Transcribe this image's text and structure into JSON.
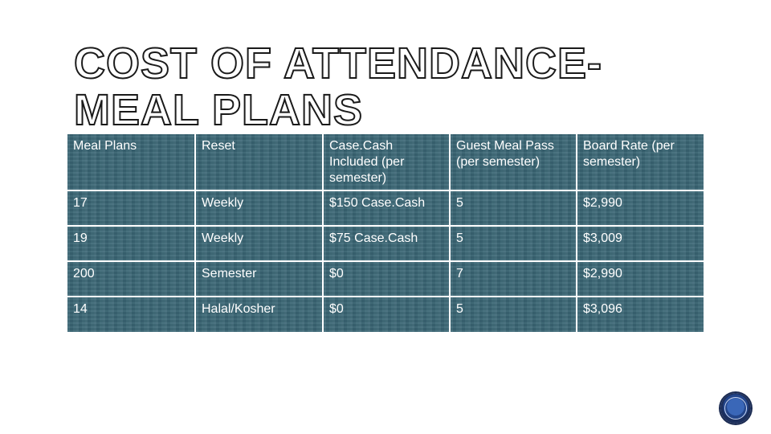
{
  "slide": {
    "title_line1": "COST OF ATTENDANCE-",
    "title_line2": "MEAL PLANS"
  },
  "table": {
    "headers": [
      "Meal Plans",
      "Reset",
      "Case.Cash Included (per semester)",
      "Guest Meal Pass (per semester)",
      "Board Rate (per semester)"
    ],
    "rows": [
      [
        "17",
        "Weekly",
        "$150 Case.Cash",
        "5",
        "$2,990"
      ],
      [
        "19",
        "Weekly",
        "$75 Case.Cash",
        "5",
        "$3,009"
      ],
      [
        "200",
        "Semester",
        "$0",
        "7",
        "$2,990"
      ],
      [
        "14",
        "Halal/Kosher",
        "$0",
        "5",
        "$3,096"
      ]
    ]
  },
  "logo": {
    "icon": "university-seal-icon",
    "color": "#23458a"
  }
}
